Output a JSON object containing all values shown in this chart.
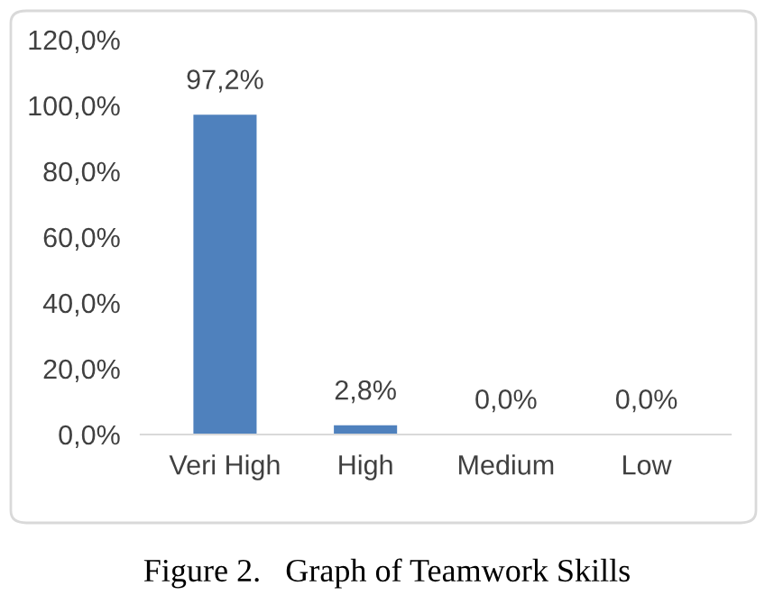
{
  "chart_data": {
    "type": "bar",
    "categories": [
      "Veri High",
      "High",
      "Medium",
      "Low"
    ],
    "values": [
      97.2,
      2.8,
      0.0,
      0.0
    ],
    "value_labels": [
      "97,2%",
      "2,8%",
      "0,0%",
      "0,0%"
    ],
    "color": "#4f81bd",
    "ylim": [
      0,
      120
    ],
    "yticks": [
      {
        "value": 0,
        "label": "0,0%"
      },
      {
        "value": 20,
        "label": "20,0%"
      },
      {
        "value": 40,
        "label": "40,0%"
      },
      {
        "value": 60,
        "label": "60,0%"
      },
      {
        "value": 80,
        "label": "80,0%"
      },
      {
        "value": 100,
        "label": "100,0%"
      },
      {
        "value": 120,
        "label": "120,0%"
      }
    ],
    "grid": false,
    "annotations": [
      "Figure 2.   Graph of Teamwork Skills"
    ]
  }
}
